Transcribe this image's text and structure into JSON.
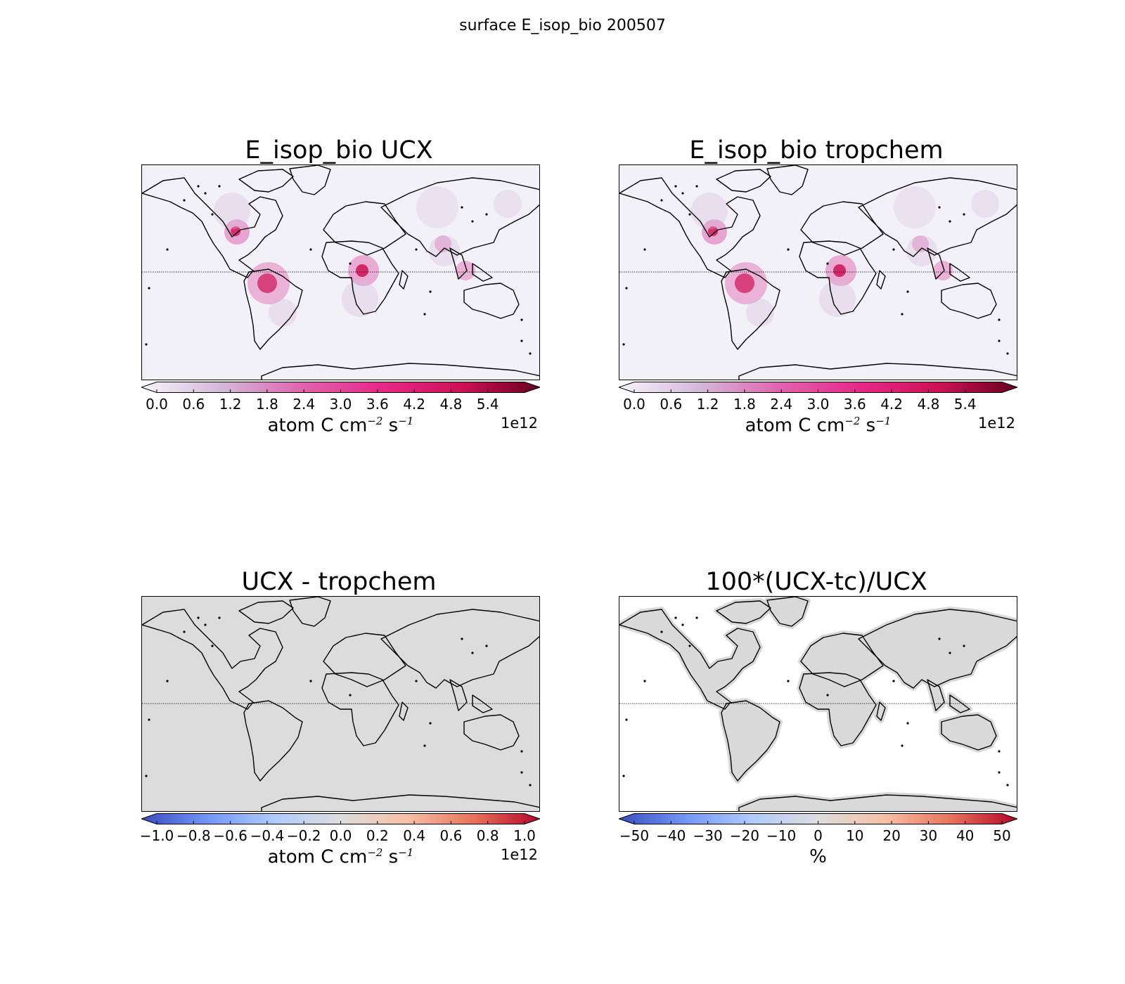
{
  "figure": {
    "title": "surface E_isop_bio 200507"
  },
  "panels": [
    {
      "title": "E_isop_bio UCX",
      "background": "#f3f1f8",
      "colorbar": {
        "colormap": "PuRd",
        "extend": "both",
        "stops": [
          "#f7f4f9",
          "#d4b9da",
          "#df65b0",
          "#e7298a",
          "#ce1256",
          "#67001f"
        ],
        "ticks": [
          "0.0",
          "0.6",
          "1.2",
          "1.8",
          "2.4",
          "3.0",
          "3.6",
          "4.2",
          "4.8",
          "5.4"
        ],
        "label_main": "atom C cm",
        "label_exp1": "−2",
        "label_mid": " s",
        "label_exp2": "−1",
        "offset": "1e12"
      }
    },
    {
      "title": "E_isop_bio tropchem",
      "background": "#f3f1f8",
      "colorbar": {
        "colormap": "PuRd",
        "extend": "both",
        "stops": [
          "#f7f4f9",
          "#d4b9da",
          "#df65b0",
          "#e7298a",
          "#ce1256",
          "#67001f"
        ],
        "ticks": [
          "0.0",
          "0.6",
          "1.2",
          "1.8",
          "2.4",
          "3.0",
          "3.6",
          "4.2",
          "4.8",
          "5.4"
        ],
        "label_main": "atom C cm",
        "label_exp1": "−2",
        "label_mid": " s",
        "label_exp2": "−1",
        "offset": "1e12"
      }
    },
    {
      "title": "UCX - tropchem",
      "background": "#dcdcdc",
      "colorbar": {
        "colormap": "coolwarm",
        "extend": "both",
        "stops": [
          "#3b4cc0",
          "#7396f5",
          "#b0cbfc",
          "#dddddd",
          "#f6bfa6",
          "#e7745b",
          "#b40426"
        ],
        "ticks": [
          "−1.0",
          "−0.8",
          "−0.6",
          "−0.4",
          "−0.2",
          "0.0",
          "0.2",
          "0.4",
          "0.6",
          "0.8",
          "1.0"
        ],
        "label_main": "atom C cm",
        "label_exp1": "−2",
        "label_mid": " s",
        "label_exp2": "−1",
        "offset": "1e12"
      }
    },
    {
      "title": "100*(UCX-tc)/UCX",
      "background": "#ffffff",
      "colorbar": {
        "colormap": "coolwarm",
        "extend": "both",
        "stops": [
          "#3b4cc0",
          "#7396f5",
          "#b0cbfc",
          "#dddddd",
          "#f6bfa6",
          "#e7745b",
          "#b40426"
        ],
        "ticks": [
          "−50",
          "−40",
          "−30",
          "−20",
          "−10",
          "0",
          "10",
          "20",
          "30",
          "40",
          "50"
        ],
        "label_main": "%",
        "label_exp1": "",
        "label_mid": "",
        "label_exp2": "",
        "offset": ""
      }
    }
  ]
}
